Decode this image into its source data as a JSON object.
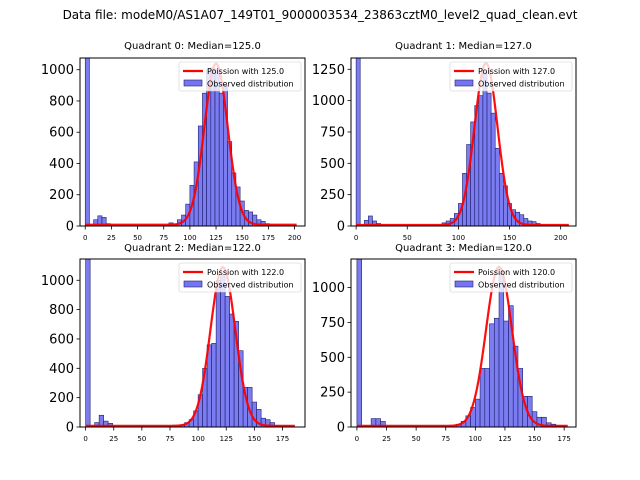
{
  "figure": {
    "suptitle": "Data file: modeM0/AS1A07_149T01_9000003534_23863cztM0_level2_quad_clean.evt"
  },
  "chart_data": [
    {
      "type": "bar",
      "title": "Quadrant 0: Median=125.0",
      "xlim": [
        -5,
        210
      ],
      "ylim": [
        0,
        1075
      ],
      "xticks": [
        0,
        25,
        50,
        75,
        100,
        125,
        150,
        175,
        200
      ],
      "yticks": [
        0,
        200,
        400,
        600,
        800,
        1000
      ],
      "bin_width": 4,
      "bins": [
        [
          0,
          1075
        ],
        [
          8,
          40
        ],
        [
          12,
          65
        ],
        [
          16,
          55
        ],
        [
          20,
          15
        ],
        [
          80,
          20
        ],
        [
          84,
          10
        ],
        [
          88,
          40
        ],
        [
          92,
          70
        ],
        [
          96,
          140
        ],
        [
          100,
          260
        ],
        [
          104,
          410
        ],
        [
          108,
          640
        ],
        [
          112,
          850
        ],
        [
          116,
          1000
        ],
        [
          120,
          1010
        ],
        [
          124,
          1000
        ],
        [
          128,
          850
        ],
        [
          132,
          900
        ],
        [
          136,
          540
        ],
        [
          140,
          340
        ],
        [
          144,
          250
        ],
        [
          148,
          160
        ],
        [
          152,
          100
        ],
        [
          156,
          90
        ],
        [
          160,
          70
        ],
        [
          164,
          40
        ],
        [
          168,
          30
        ],
        [
          172,
          15
        ],
        [
          176,
          5
        ]
      ],
      "poisson_mean": 125.0,
      "poisson_peak": 1030,
      "curve_range": [
        0,
        202
      ],
      "legend": {
        "placement": "upper-right",
        "entries": [
          "Poission with 125.0",
          "Observed distribution"
        ]
      }
    },
    {
      "type": "bar",
      "title": "Quadrant 1: Median=127.0",
      "xlim": [
        -5,
        215
      ],
      "ylim": [
        0,
        1340
      ],
      "xticks": [
        0,
        50,
        100,
        150,
        200
      ],
      "yticks": [
        0,
        250,
        500,
        750,
        1000,
        1250
      ],
      "bin_width": 4,
      "bins": [
        [
          0,
          1340
        ],
        [
          8,
          45
        ],
        [
          12,
          80
        ],
        [
          16,
          40
        ],
        [
          20,
          20
        ],
        [
          84,
          25
        ],
        [
          88,
          40
        ],
        [
          92,
          60
        ],
        [
          96,
          100
        ],
        [
          100,
          180
        ],
        [
          104,
          420
        ],
        [
          108,
          650
        ],
        [
          112,
          830
        ],
        [
          116,
          960
        ],
        [
          120,
          1040
        ],
        [
          124,
          1230
        ],
        [
          128,
          1060
        ],
        [
          132,
          900
        ],
        [
          136,
          620
        ],
        [
          140,
          420
        ],
        [
          144,
          320
        ],
        [
          148,
          180
        ],
        [
          152,
          130
        ],
        [
          156,
          110
        ],
        [
          160,
          90
        ],
        [
          164,
          60
        ],
        [
          168,
          40
        ],
        [
          172,
          35
        ],
        [
          176,
          20
        ]
      ],
      "poisson_mean": 127.0,
      "poisson_peak": 1290,
      "curve_range": [
        0,
        208
      ],
      "legend": {
        "placement": "upper-right",
        "entries": [
          "Poission with 127.0",
          "Observed distribution"
        ]
      }
    },
    {
      "type": "bar",
      "title": "Quadrant 2: Median=122.0",
      "xlim": [
        -5,
        195
      ],
      "ylim": [
        0,
        1145
      ],
      "xticks": [
        0,
        25,
        50,
        75,
        100,
        125,
        150,
        175
      ],
      "yticks": [
        0,
        200,
        400,
        600,
        800,
        1000
      ],
      "bin_width": 4,
      "bins": [
        [
          0,
          1145
        ],
        [
          8,
          30
        ],
        [
          12,
          80
        ],
        [
          16,
          40
        ],
        [
          20,
          25
        ],
        [
          84,
          15
        ],
        [
          88,
          30
        ],
        [
          92,
          50
        ],
        [
          96,
          110
        ],
        [
          100,
          220
        ],
        [
          104,
          400
        ],
        [
          108,
          560
        ],
        [
          112,
          570
        ],
        [
          116,
          1000
        ],
        [
          120,
          1030
        ],
        [
          124,
          890
        ],
        [
          128,
          770
        ],
        [
          132,
          720
        ],
        [
          136,
          520
        ],
        [
          140,
          270
        ],
        [
          144,
          270
        ],
        [
          148,
          170
        ],
        [
          152,
          120
        ],
        [
          156,
          60
        ],
        [
          160,
          50
        ],
        [
          164,
          30
        ],
        [
          168,
          10
        ]
      ],
      "poisson_mean": 122.0,
      "poisson_peak": 1080,
      "curve_range": [
        0,
        186
      ],
      "legend": {
        "placement": "upper-right",
        "entries": [
          "Poission with 122.0",
          "Observed distribution"
        ]
      }
    },
    {
      "type": "bar",
      "title": "Quadrant 3: Median=120.0",
      "xlim": [
        -5,
        185
      ],
      "ylim": [
        0,
        1205
      ],
      "xticks": [
        0,
        25,
        50,
        75,
        100,
        125,
        150,
        175
      ],
      "yticks": [
        0,
        250,
        500,
        750,
        1000
      ],
      "bin_width": 4,
      "bins": [
        [
          0,
          1205
        ],
        [
          12,
          60
        ],
        [
          16,
          60
        ],
        [
          20,
          40
        ],
        [
          84,
          20
        ],
        [
          88,
          40
        ],
        [
          92,
          80
        ],
        [
          96,
          140
        ],
        [
          100,
          200
        ],
        [
          104,
          420
        ],
        [
          108,
          420
        ],
        [
          112,
          740
        ],
        [
          116,
          780
        ],
        [
          120,
          1100
        ],
        [
          124,
          760
        ],
        [
          128,
          870
        ],
        [
          132,
          580
        ],
        [
          136,
          420
        ],
        [
          140,
          220
        ],
        [
          144,
          220
        ],
        [
          148,
          110
        ],
        [
          152,
          70
        ],
        [
          156,
          70
        ],
        [
          160,
          30
        ],
        [
          164,
          20
        ],
        [
          168,
          10
        ]
      ],
      "poisson_mean": 120.0,
      "poisson_peak": 1140,
      "curve_range": [
        0,
        178
      ],
      "legend": {
        "placement": "upper-right",
        "entries": [
          "Poission with 120.0",
          "Observed distribution"
        ]
      }
    }
  ],
  "colors": {
    "bar_fill": "#7575f0",
    "bar_edge": "#1f1f6e",
    "curve": "#ff0000"
  }
}
